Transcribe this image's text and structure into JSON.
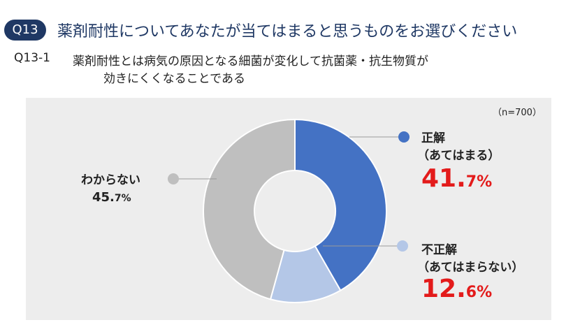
{
  "header": {
    "badge": "Q13",
    "title": "薬剤耐性についてあなたが当てはまると思うものをお選びください"
  },
  "question": {
    "id": "Q13-1",
    "line1": "薬剤耐性とは病気の原因となる細菌が変化して抗菌薬・抗生物質が",
    "line2": "効きにくくなることである"
  },
  "sample_note": "（n=700）",
  "labels": {
    "correct_name": "正解",
    "correct_sub": "（あてはまる）",
    "correct_int": "41.",
    "correct_dec": "7%",
    "incorrect_name": "不正解",
    "incorrect_sub": "（あてはまらない）",
    "incorrect_int": "12.",
    "incorrect_dec": "6%",
    "unknown_name": "わからない",
    "unknown_int": "45.",
    "unknown_dec": "7%"
  },
  "chart_data": {
    "type": "pie",
    "donut": true,
    "categories": [
      "正解（あてはまる）",
      "不正解（あてはまらない）",
      "わからない"
    ],
    "values": [
      41.7,
      12.6,
      45.7
    ],
    "colors": [
      "#4472c4",
      "#b4c7e7",
      "#bfbfbf"
    ],
    "n": 700
  }
}
